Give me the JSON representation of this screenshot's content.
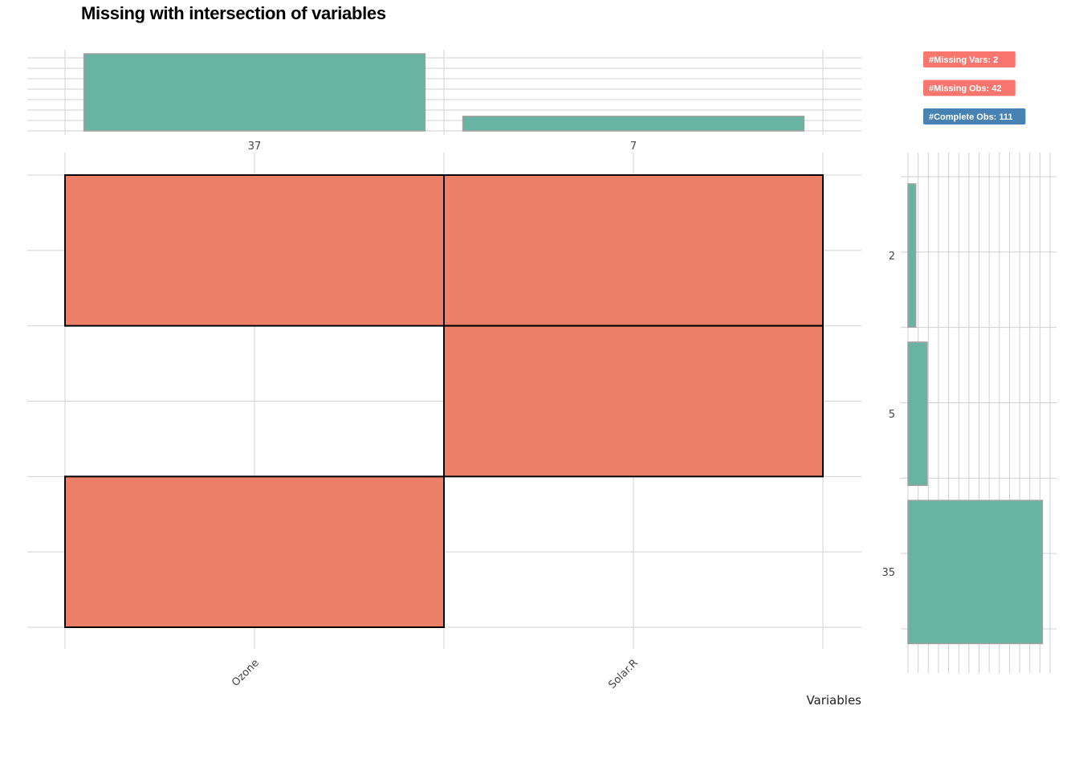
{
  "title": "Missing with intersection of variables",
  "chart_data": {
    "type": "heatmap",
    "title": "Missing with intersection of variables",
    "xlabel": "Variables",
    "variables": [
      "Ozone",
      "Solar.R"
    ],
    "missing_per_variable": [
      37,
      7
    ],
    "intersections": [
      {
        "pattern": [
          "Ozone",
          "Solar.R"
        ],
        "count": 2
      },
      {
        "pattern": [
          "Solar.R"
        ],
        "count": 5
      },
      {
        "pattern": [
          "Ozone"
        ],
        "count": 35
      }
    ],
    "intersection_axis_max": 37,
    "badges": [
      {
        "text": "#Missing Vars: 2",
        "color": "#F8766D"
      },
      {
        "text": "#Missing Obs: 42",
        "color": "#F8766D"
      },
      {
        "text": "#Complete Obs: 111",
        "color": "#4682B4"
      }
    ],
    "colors": {
      "missing_cell": "#EC7F67",
      "bar": "#69B3A2",
      "bar_outline": "#A0A0A0",
      "grid": "#D0D0D0"
    }
  }
}
